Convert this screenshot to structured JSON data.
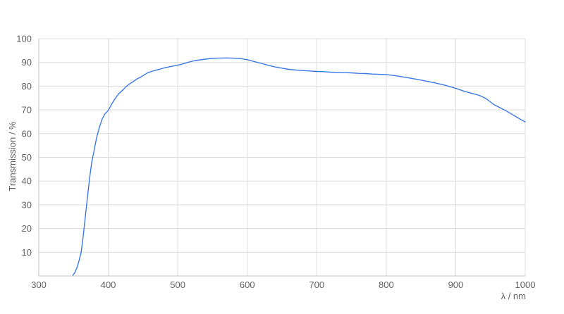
{
  "chart_data": {
    "type": "line",
    "xlabel": "λ / nm",
    "ylabel": "Transmission / %",
    "xlim": [
      300,
      1000
    ],
    "ylim": [
      0,
      100
    ],
    "x_ticks": [
      300,
      400,
      500,
      600,
      700,
      800,
      900,
      1000
    ],
    "y_ticks": [
      10,
      20,
      30,
      40,
      50,
      60,
      70,
      80,
      90,
      100
    ],
    "grid": true,
    "legend": false,
    "line_color": "#3b78e7",
    "grid_color": "#dcdcdc",
    "axis_line_color": "#c2c2c2",
    "tick_text_color": "#616161",
    "x": [
      349,
      352,
      355,
      358,
      361,
      364,
      367,
      370,
      373,
      376,
      379,
      383,
      387,
      391,
      395,
      400,
      405,
      410,
      415,
      421,
      426,
      431,
      436,
      441,
      447,
      452,
      457,
      462,
      467,
      472,
      477,
      482,
      487,
      492,
      497,
      505,
      515,
      525,
      532,
      540,
      548,
      558,
      570,
      580,
      590,
      600,
      610,
      620,
      630,
      640,
      650,
      660,
      670,
      680,
      690,
      700,
      710,
      720,
      730,
      740,
      750,
      760,
      770,
      780,
      790,
      800,
      811,
      822,
      832,
      842,
      853,
      863,
      873,
      883,
      893,
      900,
      907,
      914,
      924,
      934,
      944,
      954,
      964,
      970,
      980,
      990,
      1000
    ],
    "y": [
      0.3,
      1.5,
      3.5,
      6.5,
      10,
      17,
      25,
      33,
      41,
      47.5,
      52,
      58,
      62.5,
      66,
      68.2,
      69.8,
      72.5,
      74.8,
      76.8,
      78.4,
      79.9,
      81,
      82,
      83,
      83.9,
      84.8,
      85.7,
      86.2,
      86.6,
      87,
      87.4,
      87.8,
      88.1,
      88.4,
      88.7,
      89.2,
      90.1,
      90.8,
      91.1,
      91.4,
      91.7,
      91.8,
      91.9,
      91.8,
      91.6,
      91.2,
      90.4,
      89.6,
      88.8,
      88.1,
      87.6,
      87.1,
      86.8,
      86.6,
      86.4,
      86.2,
      86.1,
      85.9,
      85.8,
      85.7,
      85.6,
      85.4,
      85.3,
      85.1,
      85,
      84.9,
      84.5,
      84,
      83.5,
      83,
      82.4,
      81.8,
      81.2,
      80.5,
      79.7,
      79.1,
      78.4,
      77.7,
      76.9,
      76.1,
      74.7,
      72.4,
      70.9,
      70,
      68.3,
      66.6,
      64.9
    ]
  }
}
